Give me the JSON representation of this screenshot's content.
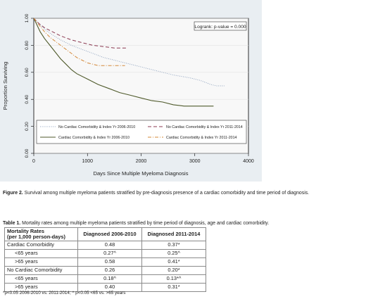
{
  "figure": {
    "caption_label": "Figure 2.",
    "caption_text": "Survival among multiple myeloma patients stratified by pre-diagnosis presence of a cardiac comorbidity and time period of diagnosis."
  },
  "chart_data": {
    "type": "line",
    "xlabel": "Days Since Multiple Myeloma Diagnosis",
    "ylabel": "Proportion Surviving",
    "xlim": [
      0,
      4000
    ],
    "ylim": [
      0,
      1
    ],
    "x_ticks": [
      "0",
      "1000",
      "2000",
      "3000",
      "4000"
    ],
    "y_ticks": [
      "0.00",
      "0.20",
      "0.40",
      "0.60",
      "0.80",
      "1.00"
    ],
    "grid": true,
    "annotation": "Logrank: p-value = 0.000",
    "legend_position": "bottom",
    "series": [
      {
        "name": "No Cardiac Comorbidity & Index Yr 2006-2010",
        "color": "#8fa3bf",
        "dash": "dotted",
        "points": [
          [
            0,
            1.0
          ],
          [
            100,
            0.96
          ],
          [
            200,
            0.92
          ],
          [
            300,
            0.89
          ],
          [
            500,
            0.84
          ],
          [
            700,
            0.8
          ],
          [
            900,
            0.77
          ],
          [
            1100,
            0.74
          ],
          [
            1300,
            0.71
          ],
          [
            1500,
            0.69
          ],
          [
            1700,
            0.67
          ],
          [
            2000,
            0.64
          ],
          [
            2300,
            0.61
          ],
          [
            2600,
            0.58
          ],
          [
            2900,
            0.56
          ],
          [
            3100,
            0.54
          ],
          [
            3300,
            0.51
          ],
          [
            3400,
            0.5
          ],
          [
            3550,
            0.5
          ]
        ]
      },
      {
        "name": "No Cardiac Comorbidity & Index Yr 2011-2014",
        "color": "#8b3a52",
        "dash": "dashed",
        "points": [
          [
            0,
            1.0
          ],
          [
            100,
            0.96
          ],
          [
            200,
            0.93
          ],
          [
            300,
            0.91
          ],
          [
            500,
            0.87
          ],
          [
            700,
            0.84
          ],
          [
            900,
            0.82
          ],
          [
            1100,
            0.8
          ],
          [
            1300,
            0.79
          ],
          [
            1500,
            0.78
          ],
          [
            1750,
            0.78
          ]
        ]
      },
      {
        "name": "Cardiac Comorbidity & Index Yr 2006-2010",
        "color": "#4f5a2b",
        "dash": "solid",
        "points": [
          [
            0,
            1.0
          ],
          [
            60,
            0.95
          ],
          [
            120,
            0.9
          ],
          [
            200,
            0.85
          ],
          [
            300,
            0.8
          ],
          [
            400,
            0.75
          ],
          [
            500,
            0.7
          ],
          [
            600,
            0.66
          ],
          [
            700,
            0.62
          ],
          [
            800,
            0.59
          ],
          [
            1000,
            0.55
          ],
          [
            1200,
            0.51
          ],
          [
            1400,
            0.48
          ],
          [
            1600,
            0.45
          ],
          [
            1800,
            0.43
          ],
          [
            2000,
            0.41
          ],
          [
            2200,
            0.39
          ],
          [
            2400,
            0.38
          ],
          [
            2600,
            0.36
          ],
          [
            2800,
            0.35
          ],
          [
            3000,
            0.35
          ],
          [
            3350,
            0.35
          ]
        ]
      },
      {
        "name": "Cardiac Comorbidity & Index Yr 2011-2014",
        "color": "#d4893a",
        "dash": "dashdot",
        "points": [
          [
            0,
            1.0
          ],
          [
            100,
            0.95
          ],
          [
            200,
            0.9
          ],
          [
            300,
            0.86
          ],
          [
            400,
            0.83
          ],
          [
            500,
            0.8
          ],
          [
            600,
            0.77
          ],
          [
            700,
            0.74
          ],
          [
            800,
            0.71
          ],
          [
            900,
            0.69
          ],
          [
            1000,
            0.67
          ],
          [
            1100,
            0.66
          ],
          [
            1200,
            0.65
          ],
          [
            1400,
            0.65
          ],
          [
            1700,
            0.65
          ]
        ]
      }
    ]
  },
  "table": {
    "caption_label": "Table 1.",
    "caption_text": "Mortality rates among multiple myeloma patients stratified by time period of diagnosis, age and cardiac comorbidity.",
    "header_line1": "Mortality Rates",
    "header_line2": "(per 1,000 person-days)",
    "col1": "Diagnosed 2006-2010",
    "col2": "Diagnosed 2011-2014",
    "rows": [
      {
        "label": "Cardiac Comorbidity",
        "a": "0.48",
        "b": "0.37*"
      },
      {
        "label": "<65 years",
        "a": "0.27^",
        "b": "0.25^"
      },
      {
        "label": ">65 years",
        "a": "0.58",
        "b": "0.41*"
      },
      {
        "label": "No Cardiac Comorbidity",
        "a": "0.26",
        "b": "0.20*"
      },
      {
        "label": "<65 years",
        "a": "0.18^",
        "b": "0.13*^"
      },
      {
        "label": ">65 years",
        "a": "0.40",
        "b": "0.31*"
      }
    ],
    "footnote": "*p<0.05 2006-2010 vs. 2011-2014; ^ p<0.05 <65 vs. >65 years"
  }
}
